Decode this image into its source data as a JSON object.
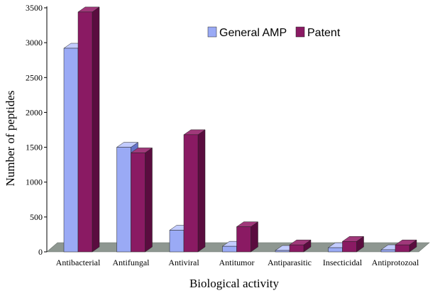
{
  "chart_data": {
    "type": "bar",
    "title": "",
    "xlabel": "Biological activity",
    "ylabel": "Number of peptides",
    "ylim": [
      0,
      3500
    ],
    "yticks": [
      0,
      500,
      1000,
      1500,
      2000,
      2500,
      3000,
      3500
    ],
    "ytick_labels": [
      "0",
      "500",
      "1000",
      "1500",
      "2000",
      "2500",
      "3000",
      "3500"
    ],
    "categories": [
      "Antibacterial",
      "Antifungal",
      "Antiviral",
      "Antitumor",
      "Antiparasitic",
      "Insecticidal",
      "Antiprotozoal"
    ],
    "series": [
      {
        "name": "General AMP",
        "color": "#9aaaf5",
        "color_top": "#c3ccff",
        "color_side": "#6573c7",
        "values": [
          2920,
          1500,
          310,
          80,
          20,
          60,
          30
        ]
      },
      {
        "name": "Patent",
        "color": "#8a1a63",
        "color_top": "#a0387a",
        "color_side": "#5a0c3f",
        "values": [
          3440,
          1420,
          1680,
          360,
          100,
          150,
          100
        ]
      }
    ],
    "legend": "top-right",
    "grid": false,
    "style": "3d-bar"
  }
}
